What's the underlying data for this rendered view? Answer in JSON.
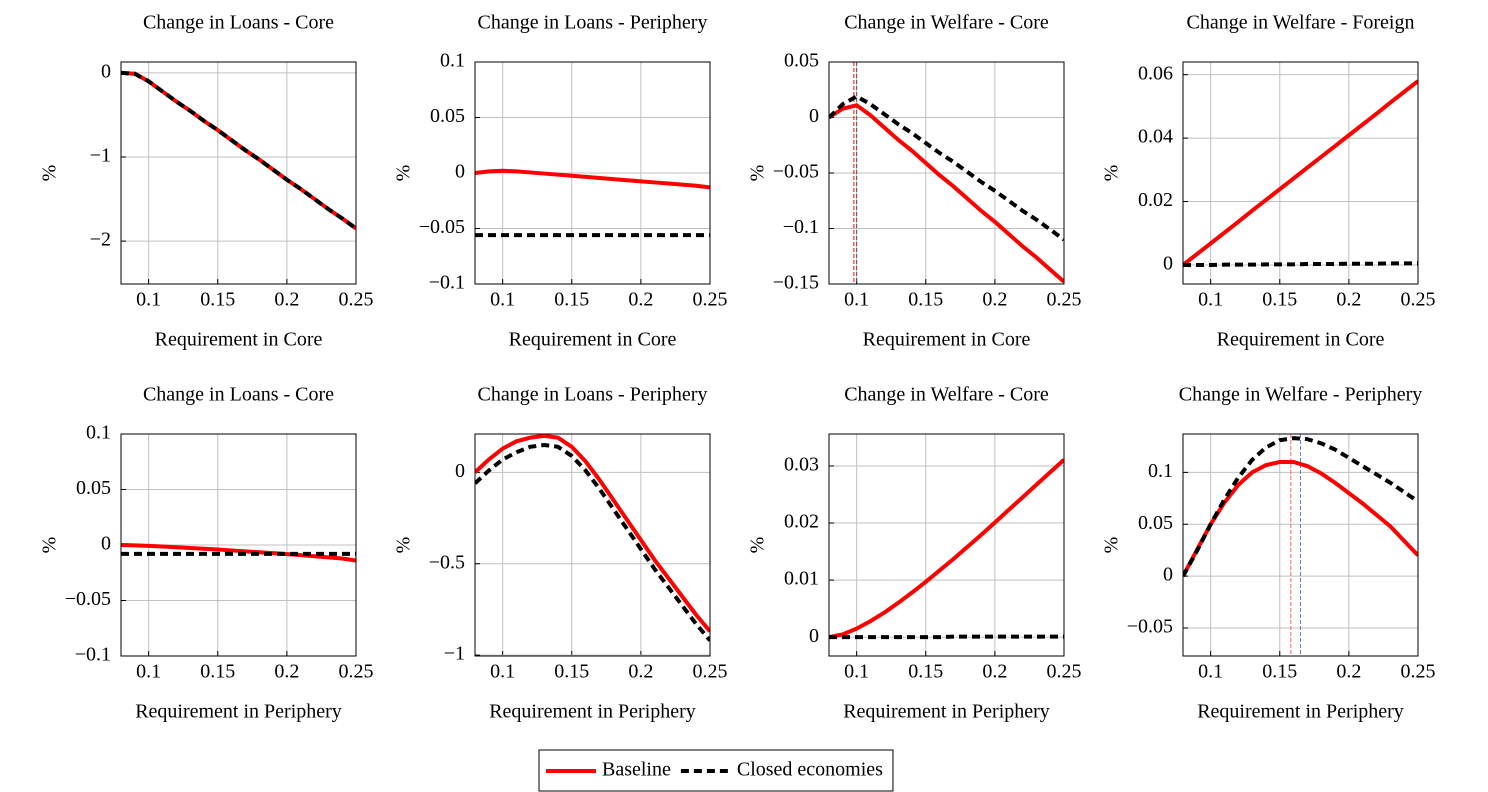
{
  "chart_data": [
    {
      "type": "line",
      "title": "Change in Loans - Core",
      "xlabel": "Requirement in Core",
      "ylabel": "%",
      "x": [
        0.08,
        0.09,
        0.1,
        0.11,
        0.12,
        0.13,
        0.14,
        0.15,
        0.16,
        0.17,
        0.18,
        0.19,
        0.2,
        0.21,
        0.22,
        0.23,
        0.24,
        0.25
      ],
      "series": [
        {
          "color": "#ff0000",
          "dash": false,
          "values": [
            0,
            -0.01,
            -0.1,
            -0.22,
            -0.34,
            -0.45,
            -0.57,
            -0.68,
            -0.8,
            -0.92,
            -1.03,
            -1.15,
            -1.27,
            -1.38,
            -1.5,
            -1.62,
            -1.73,
            -1.85
          ]
        },
        {
          "color": "#000000",
          "dash": true,
          "values": [
            0,
            -0.01,
            -0.1,
            -0.22,
            -0.34,
            -0.45,
            -0.57,
            -0.68,
            -0.8,
            -0.92,
            -1.03,
            -1.15,
            -1.27,
            -1.38,
            -1.5,
            -1.62,
            -1.73,
            -1.85
          ]
        }
      ],
      "xlim": [
        0.08,
        0.25
      ],
      "xticks": [
        0.1,
        0.15,
        0.2,
        0.25
      ],
      "ylim": [
        -2.51,
        0.13
      ],
      "yticks": [
        0,
        {
          "value": -1,
          "label": "−1"
        },
        {
          "value": -2,
          "label": "−2"
        }
      ],
      "grid": true,
      "vlines": []
    },
    {
      "type": "line",
      "title": "Change in Loans - Periphery",
      "xlabel": "Requirement in Core",
      "ylabel": "%",
      "x": [
        0.08,
        0.09,
        0.1,
        0.11,
        0.12,
        0.13,
        0.14,
        0.15,
        0.16,
        0.17,
        0.18,
        0.19,
        0.2,
        0.21,
        0.22,
        0.23,
        0.24,
        0.25
      ],
      "series": [
        {
          "color": "#ff0000",
          "dash": false,
          "values": [
            0,
            0.0015,
            0.002,
            0.0015,
            0.0005,
            -0.0005,
            -0.0015,
            -0.0025,
            -0.0035,
            -0.0045,
            -0.0055,
            -0.0065,
            -0.0075,
            -0.0085,
            -0.0095,
            -0.0105,
            -0.0115,
            -0.013
          ]
        },
        {
          "color": "#000000",
          "dash": true,
          "values": [
            -0.056,
            -0.056,
            -0.056,
            -0.056,
            -0.056,
            -0.056,
            -0.056,
            -0.056,
            -0.056,
            -0.056,
            -0.056,
            -0.056,
            -0.056,
            -0.056,
            -0.056,
            -0.056,
            -0.056,
            -0.056
          ]
        }
      ],
      "xlim": [
        0.08,
        0.25
      ],
      "xticks": [
        0.1,
        0.15,
        0.2,
        0.25
      ],
      "ylim": [
        -0.1,
        0.1
      ],
      "yticks": [
        0.1,
        0.05,
        0,
        {
          "value": -0.05,
          "label": "−0.05"
        },
        {
          "value": -0.1,
          "label": "−0.1"
        }
      ],
      "grid": true,
      "vlines": []
    },
    {
      "type": "line",
      "title": "Change in Welfare - Core",
      "xlabel": "Requirement in Core",
      "ylabel": "%",
      "x": [
        0.08,
        0.09,
        0.1,
        0.11,
        0.12,
        0.13,
        0.14,
        0.15,
        0.16,
        0.17,
        0.18,
        0.19,
        0.2,
        0.21,
        0.22,
        0.23,
        0.24,
        0.25
      ],
      "series": [
        {
          "color": "#ff0000",
          "dash": false,
          "values": [
            0,
            0.008,
            0.011,
            0.002,
            -0.009,
            -0.02,
            -0.03,
            -0.041,
            -0.052,
            -0.062,
            -0.073,
            -0.084,
            -0.094,
            -0.105,
            -0.116,
            -0.126,
            -0.137,
            -0.148
          ]
        },
        {
          "color": "#000000",
          "dash": true,
          "values": [
            0,
            0.012,
            0.019,
            0.012,
            0.003,
            -0.006,
            -0.014,
            -0.023,
            -0.032,
            -0.04,
            -0.049,
            -0.058,
            -0.066,
            -0.075,
            -0.084,
            -0.092,
            -0.101,
            -0.11
          ]
        }
      ],
      "xlim": [
        0.08,
        0.25
      ],
      "xticks": [
        0.1,
        0.15,
        0.2,
        0.25
      ],
      "ylim": [
        -0.15,
        0.05
      ],
      "yticks": [
        0.05,
        0,
        {
          "value": -0.05,
          "label": "−0.05"
        },
        {
          "value": -0.1,
          "label": "−0.1"
        },
        {
          "value": -0.15,
          "label": "−0.15"
        }
      ],
      "grid": true,
      "vlines": [
        {
          "x": 0.098,
          "color": "#ff0000"
        },
        {
          "x": 0.1,
          "color": "#555555"
        }
      ]
    },
    {
      "type": "line",
      "title": "Change in Welfare - Foreign",
      "xlabel": "Requirement in Core",
      "ylabel": "%",
      "x": [
        0.08,
        0.09,
        0.1,
        0.11,
        0.12,
        0.13,
        0.14,
        0.15,
        0.16,
        0.17,
        0.18,
        0.19,
        0.2,
        0.21,
        0.22,
        0.23,
        0.24,
        0.25
      ],
      "series": [
        {
          "color": "#ff0000",
          "dash": false,
          "values": [
            0,
            0.0034,
            0.0068,
            0.0102,
            0.0136,
            0.0171,
            0.0205,
            0.0239,
            0.0273,
            0.0307,
            0.0341,
            0.0375,
            0.0409,
            0.0443,
            0.0477,
            0.0512,
            0.0546,
            0.058
          ]
        },
        {
          "color": "#000000",
          "dash": true,
          "values": [
            0,
            0,
            0,
            0.0001,
            0.0001,
            0.0001,
            0.0002,
            0.0002,
            0.0002,
            0.0003,
            0.0003,
            0.0003,
            0.0004,
            0.0004,
            0.0004,
            0.0005,
            0.0005,
            0.0005
          ]
        }
      ],
      "xlim": [
        0.08,
        0.25
      ],
      "xticks": [
        0.1,
        0.15,
        0.2,
        0.25
      ],
      "ylim": [
        -0.006,
        0.064
      ],
      "yticks": [
        0,
        0.02,
        0.04,
        0.06
      ],
      "grid": true,
      "vlines": []
    },
    {
      "type": "line",
      "title": "Change in Loans - Core",
      "xlabel": "Requirement in Periphery",
      "ylabel": "%",
      "x": [
        0.08,
        0.09,
        0.1,
        0.11,
        0.12,
        0.13,
        0.14,
        0.15,
        0.16,
        0.17,
        0.18,
        0.19,
        0.2,
        0.21,
        0.22,
        0.23,
        0.24,
        0.25
      ],
      "series": [
        {
          "color": "#ff0000",
          "dash": false,
          "values": [
            0,
            -0.0003,
            -0.0008,
            -0.0014,
            -0.002,
            -0.0027,
            -0.0034,
            -0.0041,
            -0.0049,
            -0.0057,
            -0.0065,
            -0.0073,
            -0.0082,
            -0.0091,
            -0.0101,
            -0.0111,
            -0.0122,
            -0.014
          ]
        },
        {
          "color": "#000000",
          "dash": true,
          "values": [
            -0.008,
            -0.008,
            -0.008,
            -0.008,
            -0.008,
            -0.008,
            -0.008,
            -0.008,
            -0.008,
            -0.008,
            -0.008,
            -0.008,
            -0.008,
            -0.008,
            -0.008,
            -0.008,
            -0.008,
            -0.008
          ]
        }
      ],
      "xlim": [
        0.08,
        0.25
      ],
      "xticks": [
        0.1,
        0.15,
        0.2,
        0.25
      ],
      "ylim": [
        -0.1,
        0.1
      ],
      "yticks": [
        0.1,
        0.05,
        0,
        {
          "value": -0.05,
          "label": "−0.05"
        },
        {
          "value": -0.1,
          "label": "−0.1"
        }
      ],
      "grid": true,
      "vlines": []
    },
    {
      "type": "line",
      "title": "Change in Loans - Periphery",
      "xlabel": "Requirement in Periphery",
      "ylabel": "%",
      "x": [
        0.08,
        0.09,
        0.1,
        0.11,
        0.12,
        0.13,
        0.14,
        0.15,
        0.16,
        0.17,
        0.18,
        0.19,
        0.2,
        0.21,
        0.22,
        0.23,
        0.24,
        0.25
      ],
      "series": [
        {
          "color": "#ff0000",
          "dash": false,
          "values": [
            0,
            0.07,
            0.13,
            0.17,
            0.19,
            0.2,
            0.19,
            0.14,
            0.06,
            -0.04,
            -0.15,
            -0.26,
            -0.37,
            -0.48,
            -0.58,
            -0.68,
            -0.78,
            -0.87
          ]
        },
        {
          "color": "#000000",
          "dash": true,
          "values": [
            -0.06,
            0.01,
            0.07,
            0.11,
            0.14,
            0.15,
            0.14,
            0.09,
            0.01,
            -0.09,
            -0.2,
            -0.31,
            -0.42,
            -0.53,
            -0.63,
            -0.73,
            -0.83,
            -0.92
          ]
        }
      ],
      "xlim": [
        0.08,
        0.25
      ],
      "xticks": [
        0.1,
        0.15,
        0.2,
        0.25
      ],
      "ylim": [
        -1.005,
        0.21
      ],
      "yticks": [
        0,
        {
          "value": -0.5,
          "label": "−0.5"
        },
        {
          "value": -1,
          "label": "−1"
        }
      ],
      "grid": true,
      "vlines": []
    },
    {
      "type": "line",
      "title": "Change in Welfare - Core",
      "xlabel": "Requirement in Periphery",
      "ylabel": "%",
      "x": [
        0.08,
        0.09,
        0.1,
        0.11,
        0.12,
        0.13,
        0.14,
        0.15,
        0.16,
        0.17,
        0.18,
        0.19,
        0.2,
        0.21,
        0.22,
        0.23,
        0.24,
        0.25
      ],
      "series": [
        {
          "color": "#ff0000",
          "dash": false,
          "values": [
            0,
            0.0005,
            0.0015,
            0.0028,
            0.0043,
            0.006,
            0.0078,
            0.0097,
            0.0117,
            0.0137,
            0.0158,
            0.0179,
            0.0201,
            0.0223,
            0.0245,
            0.0267,
            0.0289,
            0.0311
          ]
        },
        {
          "color": "#000000",
          "dash": true,
          "values": [
            0,
            0,
            0,
            0,
            0,
            0,
            0,
            0,
            0,
            0.0001,
            0.0001,
            0.0001,
            0.0001,
            0.0001,
            0.0001,
            0.0001,
            0.0001,
            0.0001
          ]
        }
      ],
      "xlim": [
        0.08,
        0.25
      ],
      "xticks": [
        0.1,
        0.15,
        0.2,
        0.25
      ],
      "ylim": [
        -0.0033,
        0.0356
      ],
      "yticks": [
        0,
        0.01,
        0.02,
        0.03
      ],
      "grid": true,
      "vlines": []
    },
    {
      "type": "line",
      "title": "Change in Welfare - Periphery",
      "xlabel": "Requirement in Periphery",
      "ylabel": "%",
      "x": [
        0.08,
        0.09,
        0.1,
        0.11,
        0.12,
        0.13,
        0.14,
        0.15,
        0.16,
        0.17,
        0.18,
        0.19,
        0.2,
        0.21,
        0.22,
        0.23,
        0.24,
        0.25
      ],
      "series": [
        {
          "color": "#ff0000",
          "dash": false,
          "values": [
            0,
            0.025,
            0.05,
            0.071,
            0.088,
            0.1,
            0.107,
            0.11,
            0.11,
            0.106,
            0.099,
            0.09,
            0.08,
            0.07,
            0.059,
            0.048,
            0.034,
            0.02
          ]
        },
        {
          "color": "#000000",
          "dash": true,
          "values": [
            0,
            0.024,
            0.05,
            0.074,
            0.095,
            0.112,
            0.124,
            0.131,
            0.133,
            0.132,
            0.128,
            0.122,
            0.114,
            0.106,
            0.098,
            0.09,
            0.081,
            0.072
          ]
        }
      ],
      "xlim": [
        0.08,
        0.25
      ],
      "xticks": [
        0.1,
        0.15,
        0.2,
        0.25
      ],
      "ylim": [
        -0.077,
        0.137
      ],
      "yticks": [
        {
          "value": -0.05,
          "label": "−0.05"
        },
        0,
        0.05,
        0.1
      ],
      "grid": true,
      "vlines": [
        {
          "x": 0.158,
          "color": "#ff6060"
        },
        {
          "x": 0.165,
          "color": "#6080c0"
        }
      ]
    }
  ],
  "legend": {
    "entries": [
      {
        "name": "Baseline",
        "color": "#ff0000",
        "dash": false
      },
      {
        "name": "Closed economies",
        "color": "#000000",
        "dash": true
      }
    ]
  }
}
